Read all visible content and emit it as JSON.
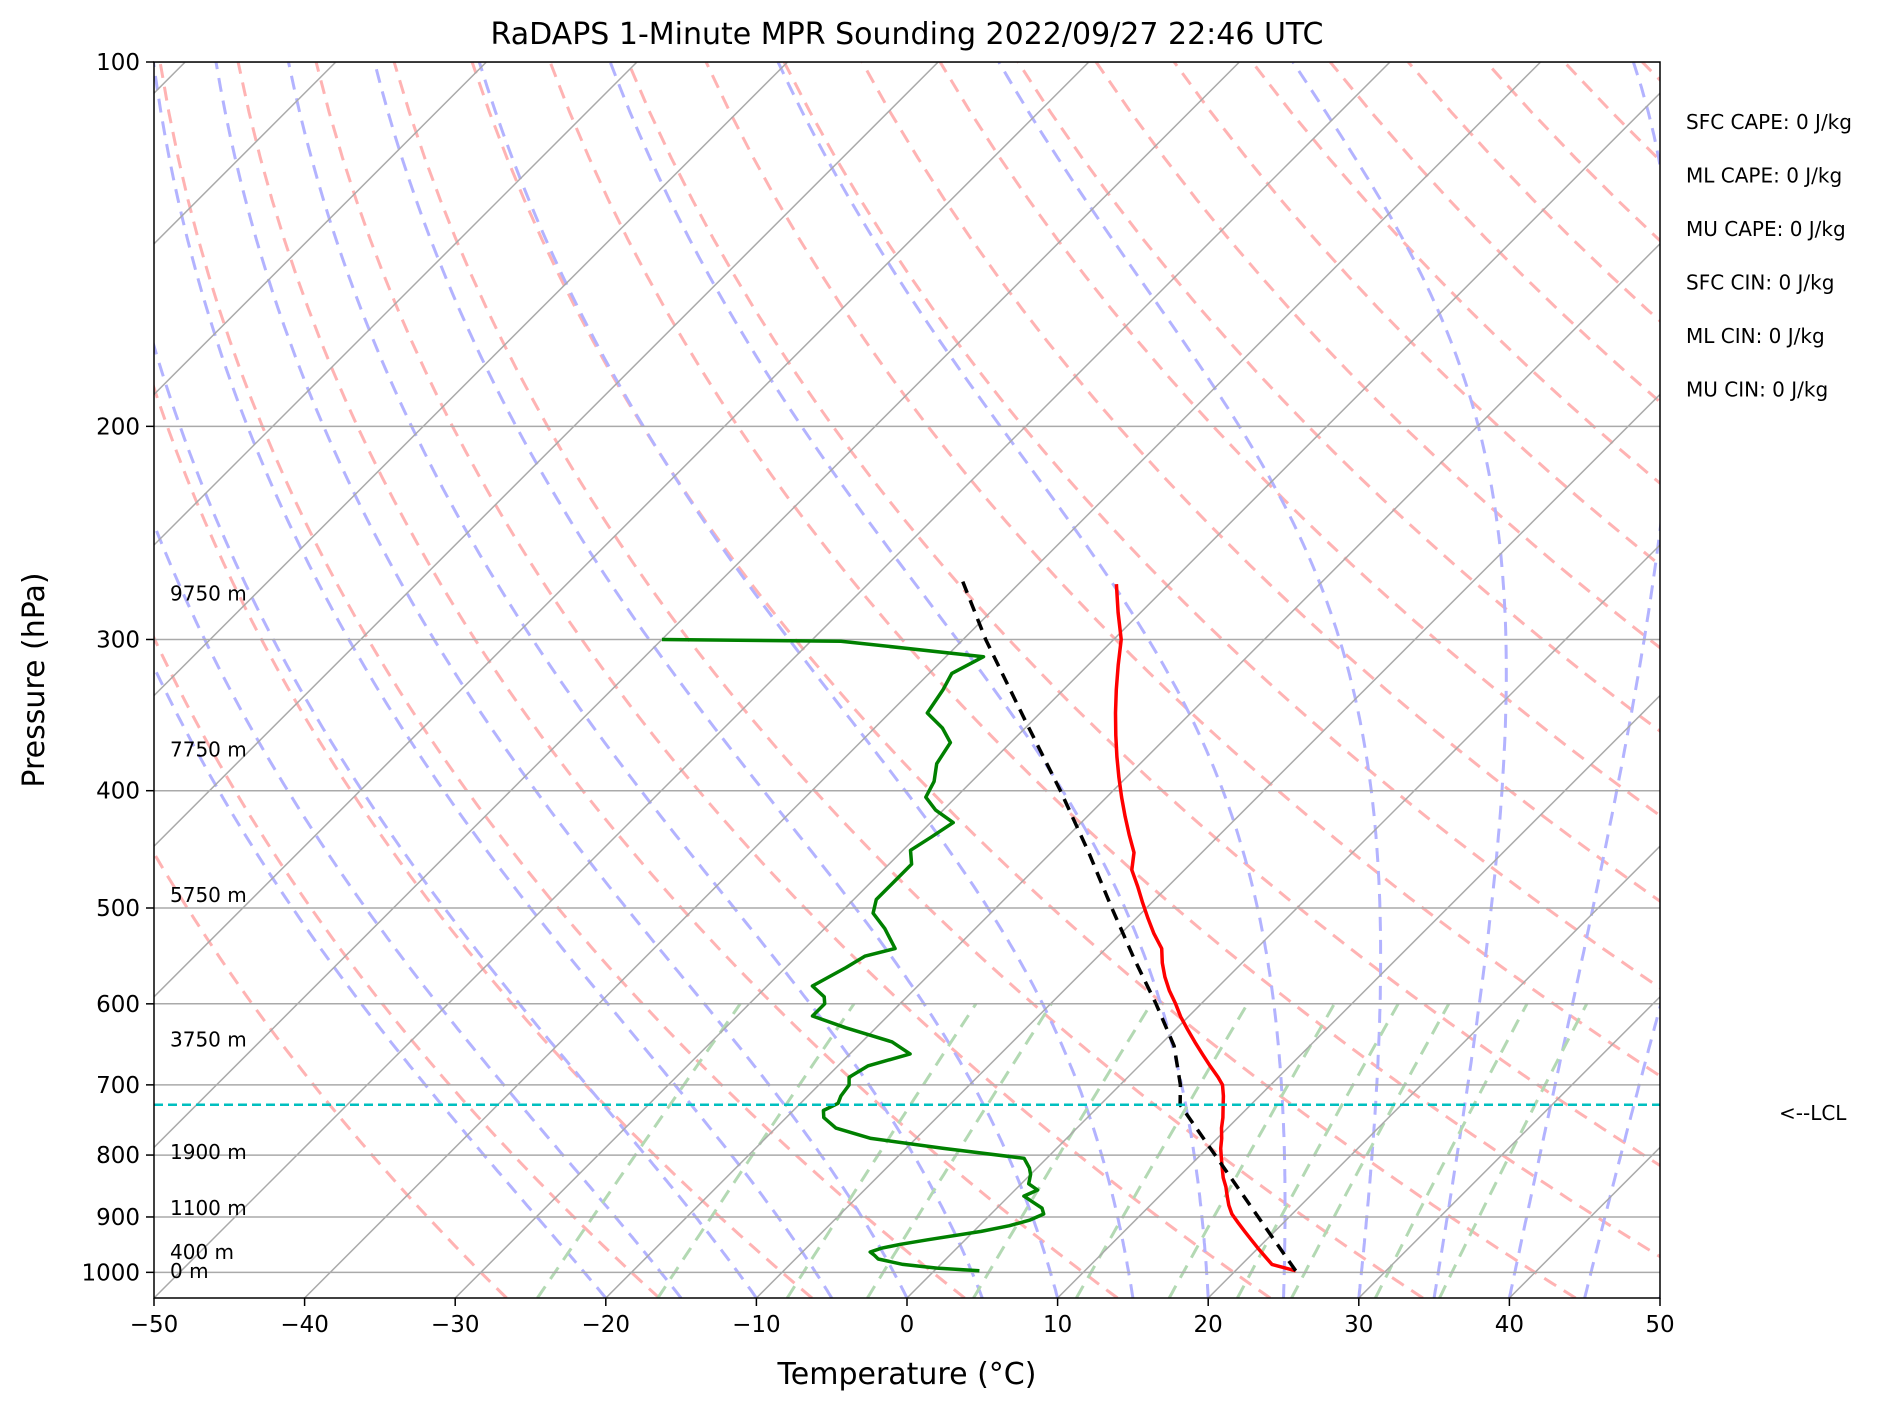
{
  "chart_data": {
    "type": "line",
    "title": "RaDAPS 1-Minute MPR Sounding 2022/09/27 22:46 UTC",
    "xlabel": "Temperature (°C)",
    "ylabel": "Pressure (hPa)",
    "x_scale": "linear",
    "y_scale": "log (inverted)",
    "xlim": [
      -50,
      50
    ],
    "ylim": [
      1050,
      100
    ],
    "skew": "temperature axis skewed 45° (Skew-T log-P)",
    "grid": true,
    "x_ticks": [
      "−50",
      "−40",
      "−30",
      "−20",
      "−10",
      "0",
      "10",
      "20",
      "30",
      "40",
      "50"
    ],
    "y_ticks": [
      "100",
      "200",
      "300",
      "400",
      "500",
      "600",
      "700",
      "800",
      "900",
      "1000"
    ],
    "height_labels": [
      {
        "label": "9750 m",
        "p": 275
      },
      {
        "label": "7750 m",
        "p": 370
      },
      {
        "label": "5750 m",
        "p": 488
      },
      {
        "label": "3750 m",
        "p": 642
      },
      {
        "label": "1900 m",
        "p": 795
      },
      {
        "label": "1100 m",
        "p": 885
      },
      {
        "label": "400 m",
        "p": 962
      },
      {
        "label": "0 m",
        "p": 997
      }
    ],
    "indices": [
      "SFC CAPE: 0 J/kg",
      "ML CAPE: 0 J/kg",
      "MU CAPE: 0 J/kg",
      "SFC CIN: 0 J/kg",
      "ML CIN: 0 J/kg",
      "MU CIN: 0 J/kg"
    ],
    "lcl": {
      "label": "<--LCL",
      "p": 727
    },
    "colors": {
      "temperature": "#ff0000",
      "dewpoint": "#008000",
      "parcel": "#000000",
      "lcl": "#00bfbf",
      "dry_adiabat": "#ffb3b3",
      "moist_adiabat": "#b3b3ff",
      "mixing_ratio": "#b3d9b3",
      "isotherm": "#aaaaaa",
      "isobar": "#aaaaaa"
    },
    "series": [
      {
        "key": "temperature",
        "points": [
          [
            997,
            24.0
          ],
          [
            985,
            22.0
          ],
          [
            970,
            21.0
          ],
          [
            955,
            20.0
          ],
          [
            940,
            19.0
          ],
          [
            925,
            18.0
          ],
          [
            910,
            17.0
          ],
          [
            895,
            16.0
          ],
          [
            880,
            15.2
          ],
          [
            865,
            14.5
          ],
          [
            850,
            13.8
          ],
          [
            835,
            13.0
          ],
          [
            820,
            12.3
          ],
          [
            805,
            11.6
          ],
          [
            790,
            10.9
          ],
          [
            775,
            10.3
          ],
          [
            760,
            9.6
          ],
          [
            745,
            9.0
          ],
          [
            730,
            8.3
          ],
          [
            715,
            7.6
          ],
          [
            700,
            6.8
          ],
          [
            690,
            6.0
          ],
          [
            675,
            4.7
          ],
          [
            660,
            3.4
          ],
          [
            645,
            2.1
          ],
          [
            630,
            0.8
          ],
          [
            615,
            -0.5
          ],
          [
            600,
            -1.7
          ],
          [
            585,
            -3.0
          ],
          [
            570,
            -4.2
          ],
          [
            555,
            -5.3
          ],
          [
            540,
            -6.3
          ],
          [
            525,
            -7.8
          ],
          [
            510,
            -9.2
          ],
          [
            495,
            -10.6
          ],
          [
            480,
            -12.0
          ],
          [
            465,
            -13.5
          ],
          [
            450,
            -14.5
          ],
          [
            435,
            -16.0
          ],
          [
            420,
            -17.5
          ],
          [
            405,
            -19.0
          ],
          [
            390,
            -20.5
          ],
          [
            375,
            -22.0
          ],
          [
            360,
            -23.5
          ],
          [
            345,
            -25.0
          ],
          [
            330,
            -26.5
          ],
          [
            315,
            -28.0
          ],
          [
            300,
            -29.5
          ],
          [
            285,
            -31.5
          ],
          [
            270,
            -33.5
          ]
        ]
      },
      {
        "key": "dewpoint",
        "points": [
          [
            997,
            3.0
          ],
          [
            992,
            0.0
          ],
          [
            985,
            -2.5
          ],
          [
            975,
            -4.5
          ],
          [
            968,
            -5.0
          ],
          [
            962,
            -5.5
          ],
          [
            955,
            -5.0
          ],
          [
            948,
            -4.0
          ],
          [
            940,
            -2.5
          ],
          [
            925,
            0.5
          ],
          [
            915,
            2.0
          ],
          [
            905,
            3.0
          ],
          [
            895,
            3.5
          ],
          [
            885,
            3.0
          ],
          [
            875,
            2.0
          ],
          [
            865,
            1.0
          ],
          [
            855,
            1.5
          ],
          [
            845,
            0.5
          ],
          [
            830,
            0.0
          ],
          [
            820,
            -0.5
          ],
          [
            805,
            -1.5
          ],
          [
            790,
            -7.5
          ],
          [
            775,
            -13.0
          ],
          [
            760,
            -16.0
          ],
          [
            745,
            -17.5
          ],
          [
            735,
            -18.0
          ],
          [
            725,
            -17.5
          ],
          [
            715,
            -17.8
          ],
          [
            700,
            -18.0
          ],
          [
            690,
            -18.5
          ],
          [
            675,
            -18.0
          ],
          [
            660,
            -16.0
          ],
          [
            645,
            -18.0
          ],
          [
            628,
            -22.0
          ],
          [
            614,
            -25.0
          ],
          [
            600,
            -25.0
          ],
          [
            592,
            -25.5
          ],
          [
            580,
            -27.0
          ],
          [
            570,
            -26.5
          ],
          [
            560,
            -26.0
          ],
          [
            548,
            -25.5
          ],
          [
            540,
            -24.0
          ],
          [
            520,
            -26.0
          ],
          [
            505,
            -27.8
          ],
          [
            492,
            -28.5
          ],
          [
            475,
            -28.5
          ],
          [
            460,
            -28.5
          ],
          [
            448,
            -29.5
          ],
          [
            437,
            -29.0
          ],
          [
            425,
            -28.5
          ],
          [
            415,
            -30.5
          ],
          [
            405,
            -32.0
          ],
          [
            393,
            -32.5
          ],
          [
            380,
            -33.5
          ],
          [
            365,
            -34.0
          ],
          [
            355,
            -35.5
          ],
          [
            345,
            -37.5
          ],
          [
            330,
            -38.0
          ],
          [
            320,
            -38.5
          ],
          [
            310,
            -37.5
          ],
          [
            301,
            -48.0
          ],
          [
            300,
            -60.0
          ]
        ]
      },
      {
        "key": "parcel",
        "points": [
          [
            997,
            24.0
          ],
          [
            727,
            5.3
          ],
          [
            700,
            4.0
          ],
          [
            650,
            1.0
          ],
          [
            600,
            -3.0
          ],
          [
            550,
            -7.5
          ],
          [
            500,
            -12.3
          ],
          [
            450,
            -17.5
          ],
          [
            400,
            -23.5
          ],
          [
            350,
            -30.5
          ],
          [
            300,
            -38.5
          ],
          [
            268,
            -44.0
          ]
        ]
      }
    ]
  }
}
